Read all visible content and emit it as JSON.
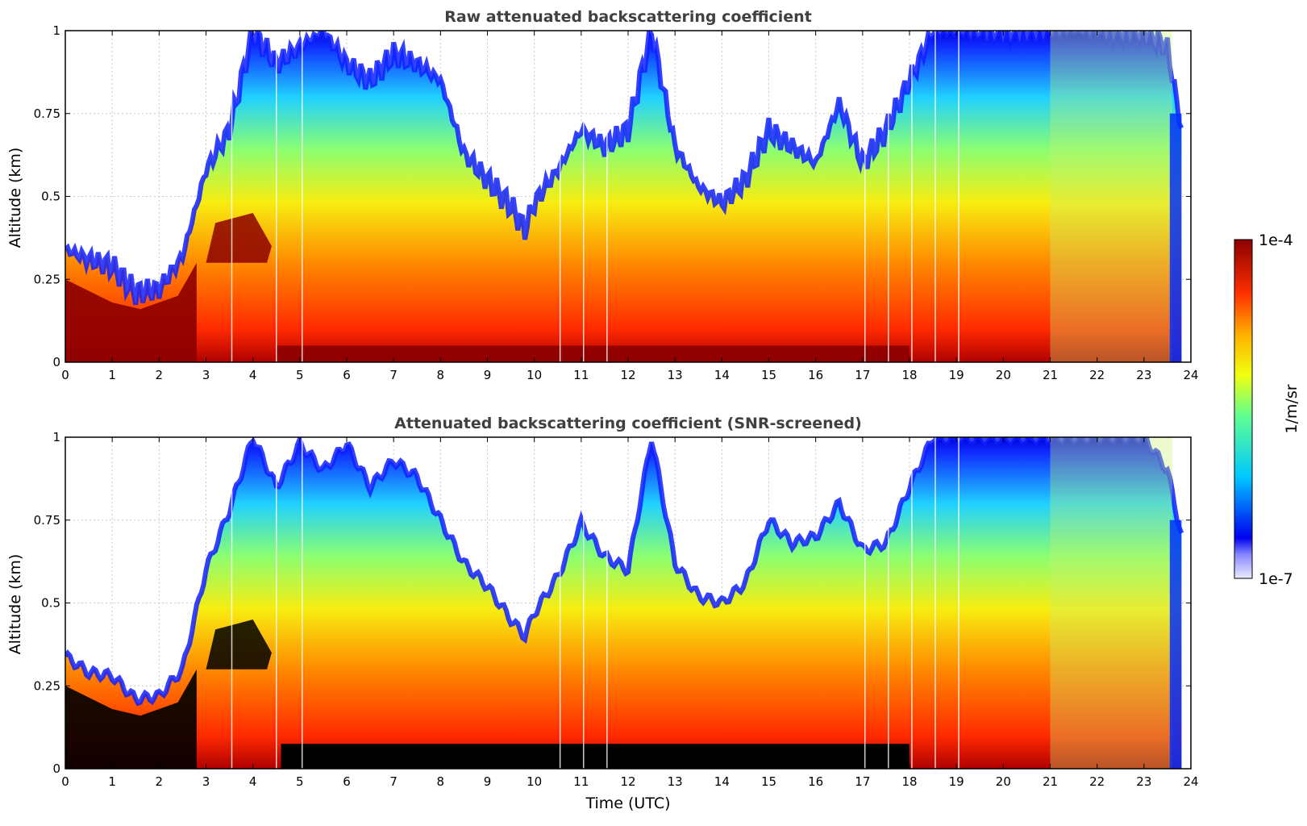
{
  "chart_data": [
    {
      "type": "heatmap",
      "title": "Raw attenuated backscattering coefficient",
      "xlabel": "",
      "ylabel": "Altitude (km)",
      "xlim": [
        0,
        24
      ],
      "ylim": [
        0,
        1
      ],
      "x_ticks": [
        "0",
        "1",
        "2",
        "3",
        "4",
        "5",
        "6",
        "7",
        "8",
        "9",
        "10",
        "11",
        "12",
        "13",
        "14",
        "15",
        "16",
        "17",
        "18",
        "19",
        "20",
        "21",
        "22",
        "23",
        "24"
      ],
      "y_ticks": [
        "0",
        "0.25",
        "0.5",
        "0.75",
        "1"
      ],
      "grid": true,
      "signal_top_km": {
        "time_utc": [
          0,
          0.5,
          1,
          1.5,
          2,
          2.5,
          3,
          3.5,
          4,
          4.5,
          5,
          5.5,
          6,
          6.5,
          7,
          7.5,
          8,
          8.5,
          9,
          9.5,
          9.8,
          10,
          10.5,
          11,
          11.5,
          12,
          12.5,
          13,
          13.5,
          14,
          14.5,
          15,
          15.5,
          16,
          16.5,
          17,
          17.5,
          18,
          18.5,
          19,
          20,
          21,
          22,
          23,
          23.5,
          23.8
        ],
        "altitude_km": [
          0.34,
          0.31,
          0.29,
          0.21,
          0.22,
          0.32,
          0.58,
          0.7,
          1.0,
          0.9,
          0.95,
          1.0,
          0.9,
          0.85,
          0.93,
          0.9,
          0.85,
          0.63,
          0.55,
          0.47,
          0.4,
          0.48,
          0.58,
          0.7,
          0.65,
          0.7,
          1.0,
          0.65,
          0.53,
          0.48,
          0.55,
          0.7,
          0.65,
          0.6,
          0.78,
          0.6,
          0.7,
          0.85,
          1.0,
          1.0,
          1.0,
          1.0,
          1.0,
          1.0,
          0.95,
          0.7
        ]
      },
      "color_scale": {
        "label": "1/m/sr",
        "min": "1e-7",
        "max": "1e-4",
        "scale": "log"
      }
    },
    {
      "type": "heatmap",
      "title": "Attenuated backscattering coefficient (SNR-screened)",
      "xlabel": "Time (UTC)",
      "ylabel": "Altitude (km)",
      "xlim": [
        0,
        24
      ],
      "ylim": [
        0,
        1
      ],
      "x_ticks": [
        "0",
        "1",
        "2",
        "3",
        "4",
        "5",
        "6",
        "7",
        "8",
        "9",
        "10",
        "11",
        "12",
        "13",
        "14",
        "15",
        "16",
        "17",
        "18",
        "19",
        "20",
        "21",
        "22",
        "23",
        "24"
      ],
      "y_ticks": [
        "0",
        "0.25",
        "0.5",
        "0.75",
        "1"
      ],
      "grid": true,
      "signal_top_km": {
        "time_utc": [
          0,
          0.5,
          1,
          1.5,
          2,
          2.5,
          3,
          3.5,
          4,
          4.5,
          5,
          5.5,
          6,
          6.5,
          7,
          7.5,
          8,
          8.5,
          9,
          9.5,
          9.8,
          10,
          10.5,
          11,
          11.5,
          12,
          12.5,
          13,
          13.5,
          14,
          14.5,
          15,
          15.5,
          16,
          16.5,
          17,
          17.5,
          18,
          18.5,
          19,
          20,
          21,
          22,
          23,
          23.5,
          23.8
        ],
        "altitude_km": [
          0.34,
          0.29,
          0.28,
          0.21,
          0.22,
          0.3,
          0.6,
          0.78,
          1.0,
          0.85,
          0.98,
          0.9,
          0.98,
          0.85,
          0.93,
          0.88,
          0.75,
          0.62,
          0.55,
          0.45,
          0.4,
          0.47,
          0.58,
          0.74,
          0.64,
          0.6,
          1.0,
          0.62,
          0.52,
          0.5,
          0.56,
          0.75,
          0.68,
          0.7,
          0.8,
          0.66,
          0.68,
          0.85,
          1.0,
          1.0,
          1.0,
          1.0,
          1.0,
          1.0,
          0.9,
          0.7
        ]
      },
      "color_scale": {
        "label": "1/m/sr",
        "min": "1e-7",
        "max": "1e-4",
        "scale": "log"
      }
    }
  ],
  "colorbar": {
    "label": "1/m/sr",
    "max_label": "1e-4",
    "min_label": "1e-7"
  }
}
